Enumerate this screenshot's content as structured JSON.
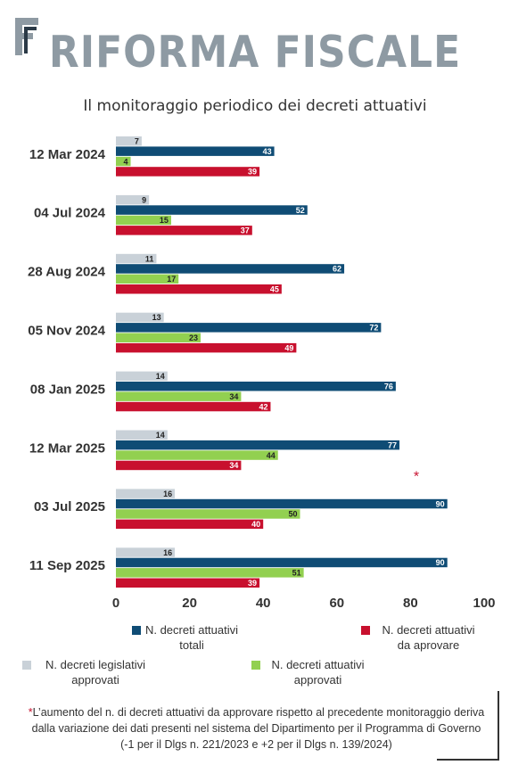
{
  "header": {
    "logo_letter": "F",
    "title": "RIFORMA FISCALE",
    "subtitle": "Il monitoraggio periodico dei decreti attuativi"
  },
  "colors": {
    "legislativi": "#c9d1d8",
    "totali": "#0f4c75",
    "approvati": "#92d050",
    "da_approvare": "#c8102e",
    "title": "#8e9aa3"
  },
  "chart_data": {
    "type": "bar",
    "orientation": "horizontal",
    "categories": [
      "12 Mar 2024",
      "04 Jul 2024",
      "28 Aug 2024",
      "05 Nov 2024",
      "08 Jan 2025",
      "12 Mar 2025",
      "03 Jul 2025",
      "11 Sep 2025"
    ],
    "series": [
      {
        "name": "N. decreti legislativi approvati",
        "values": [
          7,
          9,
          11,
          13,
          14,
          14,
          16,
          16
        ]
      },
      {
        "name": "N. decreti attuativi totali",
        "values": [
          43,
          52,
          62,
          72,
          76,
          77,
          90,
          90
        ]
      },
      {
        "name": "N. decreti attuativi approvati",
        "values": [
          4,
          15,
          17,
          23,
          34,
          44,
          50,
          51
        ]
      },
      {
        "name": "N. decreti attuativi da aprovare",
        "values": [
          39,
          37,
          45,
          49,
          42,
          34,
          40,
          39
        ]
      }
    ],
    "xlim": [
      0,
      100
    ],
    "xticks": [
      0,
      20,
      40,
      60,
      80,
      100
    ],
    "data_labels": true,
    "grid": false,
    "legend_position": "bottom",
    "annotation": {
      "text": "*",
      "category": "03 Jul 2025"
    }
  },
  "legend": [
    {
      "label": "N. decreti attuativi\ntotali",
      "color_key": "totali"
    },
    {
      "label": "N. decreti attuativi\nda aprovare",
      "color_key": "da_approvare"
    },
    {
      "label": "N. decreti legislativi\napprovati",
      "color_key": "legislativi"
    },
    {
      "label": "N. decreti attuativi\napprovati",
      "color_key": "approvati"
    }
  ],
  "footnote": {
    "star": "*",
    "text": "L’aumento del n. di decreti attuativi da approvare rispetto al precedente monitoraggio deriva dalla variazione dei dati presenti nel sistema del Dipartimento per il Programma di Governo (-1 per il Dlgs n. 221/2023 e +2 per il Dlgs n. 139/2024)"
  }
}
